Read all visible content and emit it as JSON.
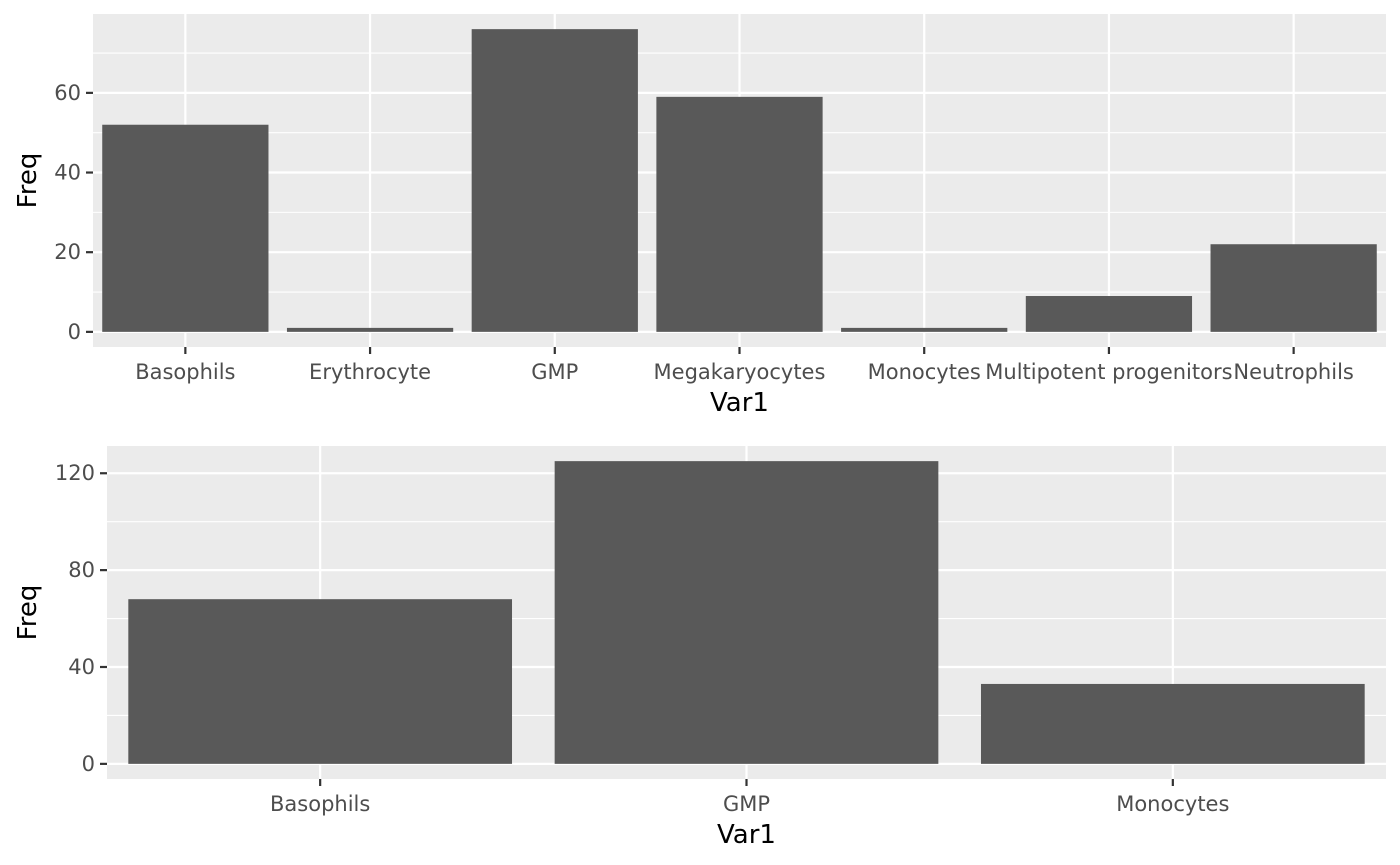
{
  "chart_data": [
    {
      "type": "bar",
      "xlabel": "Var1",
      "ylabel": "Freq",
      "categories": [
        "Basophils",
        "Erythrocyte",
        "GMP",
        "Megakaryocytes",
        "Monocytes",
        "Multipotent progenitors",
        "Neutrophils"
      ],
      "values": [
        52,
        1,
        76,
        59,
        1,
        9,
        22
      ],
      "yticks": [
        0,
        20,
        40,
        60
      ],
      "ylim": [
        -3.8,
        79.8
      ],
      "grid": true,
      "colors": {
        "bar": "#595959",
        "panel": "#ebebeb",
        "grid": "#ffffff"
      }
    },
    {
      "type": "bar",
      "xlabel": "Var1",
      "ylabel": "Freq",
      "categories": [
        "Basophils",
        "GMP",
        "Monocytes"
      ],
      "values": [
        68,
        125,
        33
      ],
      "yticks": [
        0,
        40,
        80,
        120
      ],
      "ylim": [
        -6.25,
        131.25
      ],
      "grid": true,
      "colors": {
        "bar": "#595959",
        "panel": "#ebebeb",
        "grid": "#ffffff"
      }
    }
  ]
}
